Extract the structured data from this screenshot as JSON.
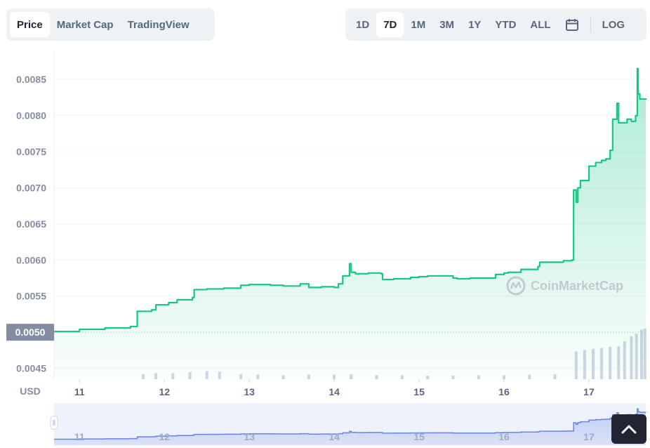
{
  "tabs_left": [
    {
      "label": "Price",
      "active": true
    },
    {
      "label": "Market Cap",
      "active": false
    },
    {
      "label": "TradingView",
      "active": false
    }
  ],
  "tabs_right": [
    {
      "label": "1D",
      "active": false
    },
    {
      "label": "7D",
      "active": true
    },
    {
      "label": "1M",
      "active": false
    },
    {
      "label": "3M",
      "active": false
    },
    {
      "label": "1Y",
      "active": false
    },
    {
      "label": "YTD",
      "active": false
    },
    {
      "label": "ALL",
      "active": false
    }
  ],
  "calendar_icon": "calendar-icon",
  "log_label": "LOG",
  "watermark": "CoinMarketCap",
  "colors": {
    "line": "#16c784",
    "volume": "#cfd6e4",
    "navigator": "#6b83e0",
    "reference": "#858ca2"
  },
  "chart_data": {
    "type": "line",
    "currency_label": "USD",
    "reference_value": 0.005,
    "reference_label": "0.0050",
    "ylim": [
      0.00435,
      0.0089
    ],
    "y_ticks": [
      {
        "value": 0.0045,
        "label": "0.0045"
      },
      {
        "value": 0.0055,
        "label": "0.0055"
      },
      {
        "value": 0.006,
        "label": "0.0060"
      },
      {
        "value": 0.0065,
        "label": "0.0065"
      },
      {
        "value": 0.007,
        "label": "0.0070"
      },
      {
        "value": 0.0075,
        "label": "0.0075"
      },
      {
        "value": 0.008,
        "label": "0.0080"
      },
      {
        "value": 0.0085,
        "label": "0.0085"
      }
    ],
    "x_ticks": [
      {
        "value": 11,
        "label": "11"
      },
      {
        "value": 12,
        "label": "12"
      },
      {
        "value": 13,
        "label": "13"
      },
      {
        "value": 14,
        "label": "14"
      },
      {
        "value": 15,
        "label": "15"
      },
      {
        "value": 16,
        "label": "16"
      },
      {
        "value": 17,
        "label": "17"
      }
    ],
    "xlim": [
      10.7,
      17.67
    ],
    "grid": true,
    "series": [
      {
        "x": [
          10.7,
          11.0,
          11.3,
          11.6,
          11.67,
          11.68,
          11.85,
          11.9,
          12.05,
          12.15,
          12.33,
          12.35,
          12.5,
          12.7,
          12.9,
          13.0,
          13.1,
          13.25,
          13.4,
          13.6,
          13.7,
          13.85,
          14.0,
          14.05,
          14.1,
          14.18,
          14.2,
          14.25,
          14.4,
          14.55,
          14.57,
          14.7,
          14.9,
          15.0,
          15.1,
          15.2,
          15.4,
          15.45,
          15.6,
          15.9,
          16.0,
          16.05,
          16.2,
          16.4,
          16.42,
          16.7,
          16.8,
          16.82,
          16.85,
          16.87,
          16.9,
          17.0,
          17.08,
          17.13,
          17.15,
          17.2,
          17.25,
          17.28,
          17.33,
          17.35,
          17.42,
          17.45,
          17.5,
          17.55,
          17.57,
          17.58,
          17.6,
          17.67
        ],
        "y": [
          0.00501,
          0.00504,
          0.00506,
          0.00508,
          0.00508,
          0.00529,
          0.00531,
          0.00538,
          0.00541,
          0.00545,
          0.00548,
          0.00559,
          0.0056,
          0.00561,
          0.00565,
          0.00566,
          0.00566,
          0.00565,
          0.00564,
          0.00567,
          0.00562,
          0.00563,
          0.00562,
          0.00567,
          0.00578,
          0.00595,
          0.00583,
          0.00581,
          0.00582,
          0.00581,
          0.00573,
          0.00574,
          0.00576,
          0.00577,
          0.00578,
          0.00578,
          0.00575,
          0.00574,
          0.00575,
          0.0058,
          0.00582,
          0.00583,
          0.00587,
          0.00591,
          0.00597,
          0.00599,
          0.006,
          0.00697,
          0.0068,
          0.007,
          0.0071,
          0.0073,
          0.00735,
          0.00735,
          0.00738,
          0.0074,
          0.00752,
          0.00795,
          0.00817,
          0.0079,
          0.0079,
          0.00795,
          0.00792,
          0.008,
          0.00865,
          0.0083,
          0.00823,
          0.00822
        ]
      }
    ],
    "volume": [
      {
        "x": 11.75,
        "v": 0.1
      },
      {
        "x": 11.9,
        "v": 0.12
      },
      {
        "x": 12.1,
        "v": 0.12
      },
      {
        "x": 12.3,
        "v": 0.14
      },
      {
        "x": 12.5,
        "v": 0.16
      },
      {
        "x": 12.65,
        "v": 0.15
      },
      {
        "x": 12.9,
        "v": 0.1
      },
      {
        "x": 13.1,
        "v": 0.09
      },
      {
        "x": 13.4,
        "v": 0.08
      },
      {
        "x": 13.7,
        "v": 0.09
      },
      {
        "x": 14.0,
        "v": 0.09
      },
      {
        "x": 14.2,
        "v": 0.1
      },
      {
        "x": 14.5,
        "v": 0.08
      },
      {
        "x": 14.8,
        "v": 0.08
      },
      {
        "x": 15.1,
        "v": 0.07
      },
      {
        "x": 15.4,
        "v": 0.07
      },
      {
        "x": 15.7,
        "v": 0.08
      },
      {
        "x": 16.0,
        "v": 0.08
      },
      {
        "x": 16.3,
        "v": 0.09
      },
      {
        "x": 16.6,
        "v": 0.1
      },
      {
        "x": 16.85,
        "v": 0.55
      },
      {
        "x": 16.95,
        "v": 0.58
      },
      {
        "x": 17.05,
        "v": 0.6
      },
      {
        "x": 17.15,
        "v": 0.62
      },
      {
        "x": 17.25,
        "v": 0.64
      },
      {
        "x": 17.35,
        "v": 0.65
      },
      {
        "x": 17.42,
        "v": 0.75
      },
      {
        "x": 17.5,
        "v": 0.85
      },
      {
        "x": 17.56,
        "v": 0.9
      },
      {
        "x": 17.62,
        "v": 0.98
      },
      {
        "x": 17.66,
        "v": 1.0
      }
    ]
  }
}
